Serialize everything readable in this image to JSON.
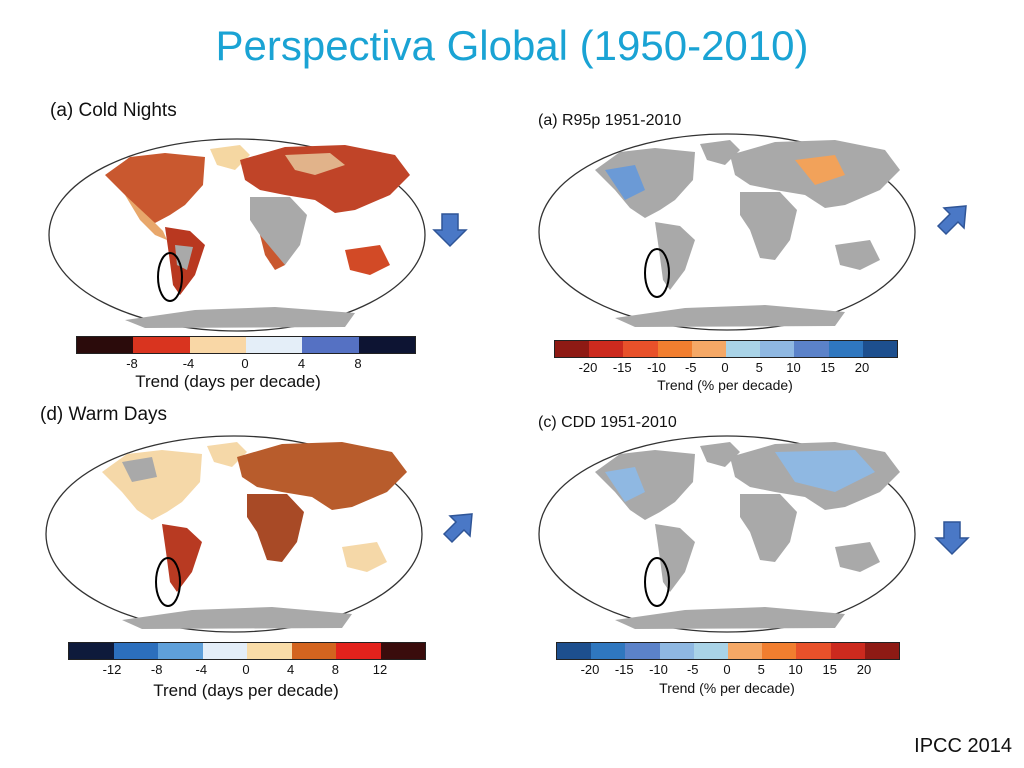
{
  "title": "Perspectiva Global (1950-2010)",
  "credit": "IPCC 2014",
  "panels": {
    "cold_nights": {
      "label": "(a) Cold Nights",
      "colorbar_title": "Trend (days per decade)",
      "ticks": [
        "-8",
        "-4",
        "0",
        "4",
        "8"
      ],
      "colors": [
        "#2b0b0b",
        "#d9341f",
        "#f9d7a6",
        "#e4eef8",
        "#5571c3",
        "#0d1433"
      ],
      "arrow": "down"
    },
    "r95p": {
      "label": "(a)  R95p 1951-2010",
      "colorbar_title": "Trend (% per decade)",
      "ticks": [
        "-20",
        "-15",
        "-10",
        "-5",
        "0",
        "5",
        "10",
        "15",
        "20"
      ],
      "colors": [
        "#8e1a14",
        "#cc2a1e",
        "#e8512a",
        "#f17e2f",
        "#f5a866",
        "#a9d3e7",
        "#8fb8e2",
        "#5b82c9",
        "#2f77bf",
        "#1d4f8e"
      ],
      "arrow": "up"
    },
    "warm_days": {
      "label": "(d) Warm Days",
      "colorbar_title": "Trend (days per decade)",
      "ticks": [
        "-12",
        "-8",
        "-4",
        "0",
        "4",
        "8",
        "12"
      ],
      "colors": [
        "#0e1a3b",
        "#2c6fbd",
        "#5fa0da",
        "#e4eef8",
        "#f9dca8",
        "#d3641f",
        "#e3221c",
        "#3a0c0c"
      ],
      "arrow": "up"
    },
    "cdd": {
      "label": "(c)  CDD 1951-2010",
      "colorbar_title": "Trend (% per decade)",
      "ticks": [
        "-20",
        "-15",
        "-10",
        "-5",
        "0",
        "5",
        "10",
        "15",
        "20"
      ],
      "colors": [
        "#1d4f8e",
        "#2f77bf",
        "#5b82c9",
        "#8fb8e2",
        "#a9d3e7",
        "#f5a866",
        "#f17e2f",
        "#e8512a",
        "#cc2a1e",
        "#8e1a14"
      ],
      "arrow": "down"
    }
  }
}
